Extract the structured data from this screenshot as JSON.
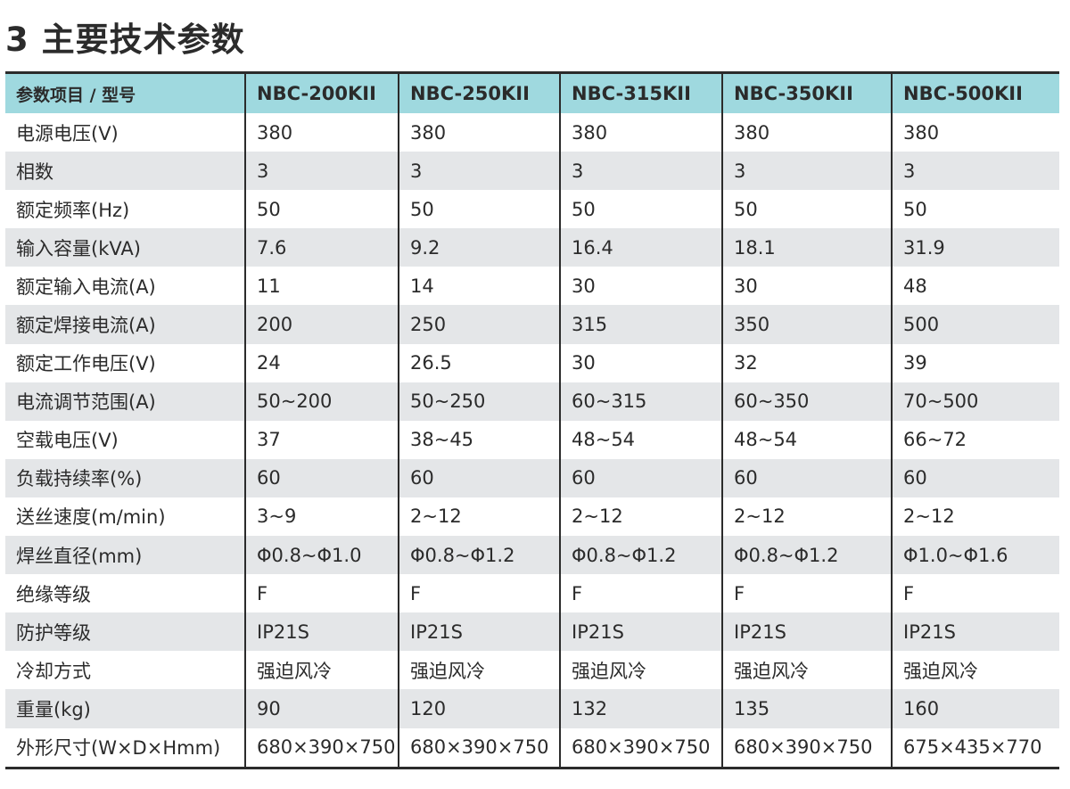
{
  "title": "3 主要技术参数",
  "header": [
    "参数项目 / 型号",
    "NBC-200KII",
    "NBC-250KII",
    "NBC-315KII",
    "NBC-350KII",
    "NBC-500KII"
  ],
  "rows": [
    [
      "电源电压(V)",
      "380",
      "380",
      "380",
      "380",
      "380"
    ],
    [
      "相数",
      "3",
      "3",
      "3",
      "3",
      "3"
    ],
    [
      "额定频率(Hz)",
      "50",
      "50",
      "50",
      "50",
      "50"
    ],
    [
      "输入容量(kVA)",
      "7.6",
      "9.2",
      "16.4",
      "18.1",
      "31.9"
    ],
    [
      "额定输入电流(A)",
      "11",
      "14",
      "30",
      "30",
      "48"
    ],
    [
      "额定焊接电流(A)",
      "200",
      "250",
      "315",
      "350",
      "500"
    ],
    [
      "额定工作电压(V)",
      "24",
      "26.5",
      "30",
      "32",
      "39"
    ],
    [
      "电流调节范围(A)",
      "50~200",
      "50~250",
      "60~315",
      "60~350",
      "70~500"
    ],
    [
      "空载电压(V)",
      "37",
      "38~45",
      "48~54",
      "48~54",
      "66~72"
    ],
    [
      "负载持续率(%)",
      "60",
      "60",
      "60",
      "60",
      "60"
    ],
    [
      "送丝速度(m/min)",
      "3~9",
      "2~12",
      "2~12",
      "2~12",
      "2~12"
    ],
    [
      "焊丝直径(mm)",
      "Φ0.8~Φ1.0",
      "Φ0.8~Φ1.2",
      "Φ0.8~Φ1.2",
      "Φ0.8~Φ1.2",
      "Φ1.0~Φ1.6"
    ],
    [
      "绝缘等级",
      "F",
      "F",
      "F",
      "F",
      "F"
    ],
    [
      "防护等级",
      "IP21S",
      "IP21S",
      "IP21S",
      "IP21S",
      "IP21S"
    ],
    [
      "冷却方式",
      "强迫风冷",
      "强迫风冷",
      "强迫风冷",
      "强迫风冷",
      "强迫风冷"
    ],
    [
      "重量(kg)",
      "90",
      "120",
      "132",
      "135",
      "160"
    ],
    [
      "外形尺寸(W×D×Hmm)",
      "680×390×750",
      "680×390×750",
      "680×390×750",
      "680×390×750",
      "675×435×770"
    ]
  ],
  "colors": {
    "header_bg": "#9fd9df",
    "stripe_bg": "#e4e6e8",
    "text": "#2b2b2b",
    "rule": "#2b2b2b"
  }
}
